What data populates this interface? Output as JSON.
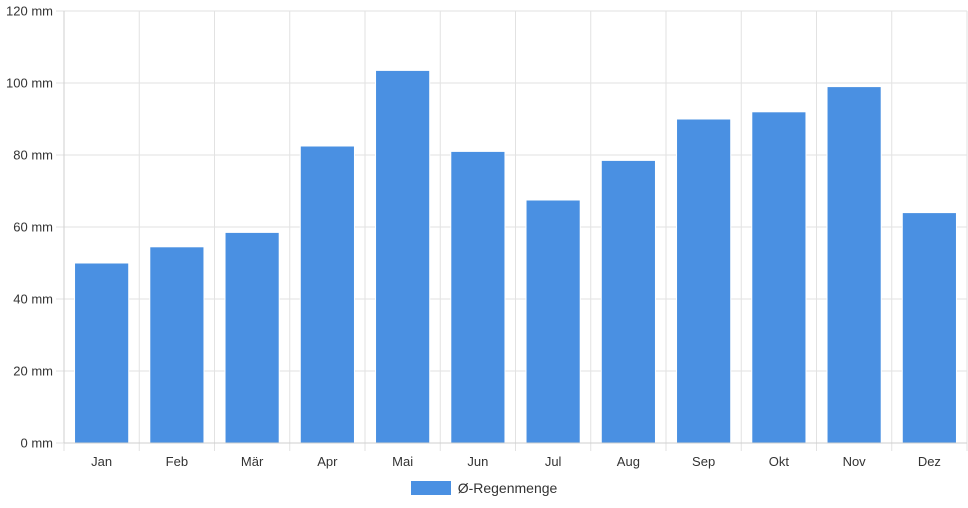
{
  "chart_data": {
    "type": "bar",
    "categories": [
      "Jan",
      "Feb",
      "Mär",
      "Apr",
      "Mai",
      "Jun",
      "Jul",
      "Aug",
      "Sep",
      "Okt",
      "Nov",
      "Dez"
    ],
    "series": [
      {
        "name": "Ø-Regenmenge",
        "values": [
          50,
          54.5,
          58.5,
          82.5,
          103.5,
          81,
          67.5,
          78.5,
          90,
          92,
          99,
          64
        ],
        "color": "#4a90e2"
      }
    ],
    "yticks": [
      "0 mm",
      "20 mm",
      "40 mm",
      "60 mm",
      "80 mm",
      "100 mm",
      "120 mm"
    ],
    "ylim": [
      0,
      120
    ],
    "ystep": 20,
    "grid": true,
    "legend_position": "bottom"
  }
}
